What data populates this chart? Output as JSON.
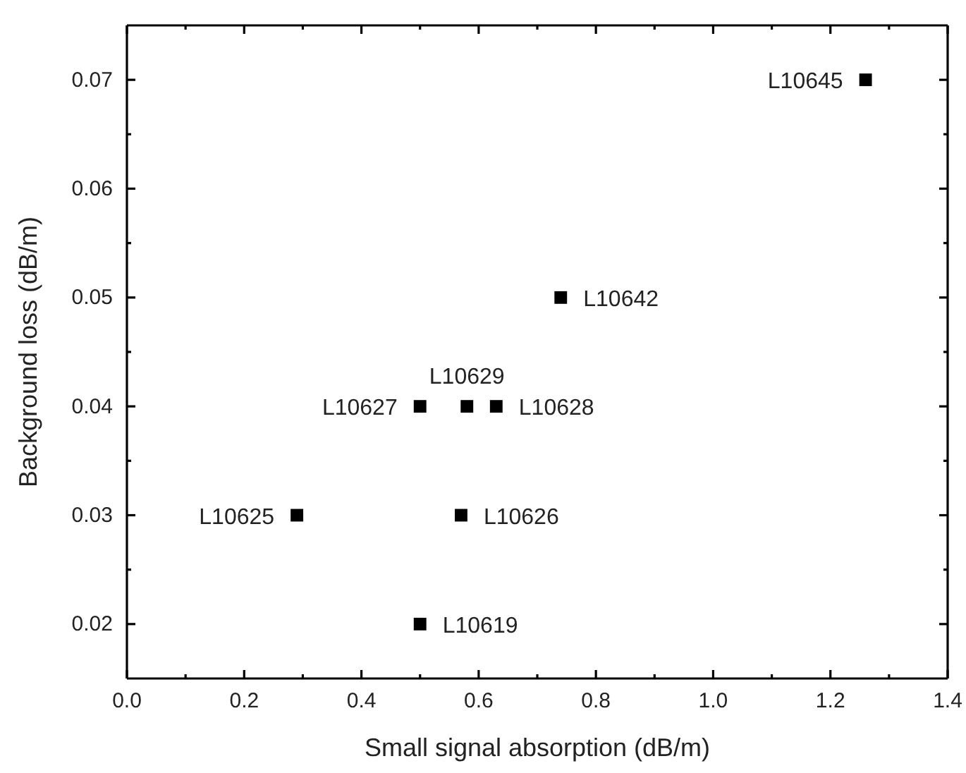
{
  "chart_data": {
    "type": "scatter",
    "xlabel": "Small signal absorption (dB/m)",
    "ylabel": "Background loss (dB/m)",
    "x": [
      1.26,
      0.74,
      0.5,
      0.58,
      0.63,
      0.29,
      0.57,
      0.5
    ],
    "values": [
      0.07,
      0.05,
      0.04,
      0.04,
      0.04,
      0.03,
      0.03,
      0.02
    ],
    "color": "#000000",
    "marker": "square",
    "grid": false,
    "xlim": [
      0,
      1.4
    ],
    "ylim": [
      0.015,
      0.075
    ],
    "xticks": [
      {
        "value": 0,
        "label": "0.0"
      },
      {
        "value": 0.1,
        "label": null
      },
      {
        "value": 0.2,
        "label": "0.2"
      },
      {
        "value": 0.3,
        "label": null
      },
      {
        "value": 0.4,
        "label": "0.4"
      },
      {
        "value": 0.5,
        "label": null
      },
      {
        "value": 0.6,
        "label": "0.6"
      },
      {
        "value": 0.7,
        "label": null
      },
      {
        "value": 0.8,
        "label": "0.8"
      },
      {
        "value": 0.9,
        "label": null
      },
      {
        "value": 1,
        "label": "1.0"
      },
      {
        "value": 1.1,
        "label": null
      },
      {
        "value": 1.2,
        "label": "1.2"
      },
      {
        "value": 1.3,
        "label": null
      },
      {
        "value": 1.4,
        "label": "1.4"
      }
    ],
    "yticks": [
      {
        "value": 0.02,
        "label": "0.02"
      },
      {
        "value": 0.025,
        "label": null
      },
      {
        "value": 0.03,
        "label": "0.03"
      },
      {
        "value": 0.035,
        "label": null
      },
      {
        "value": 0.04,
        "label": "0.04"
      },
      {
        "value": 0.045,
        "label": null
      },
      {
        "value": 0.05,
        "label": "0.05"
      },
      {
        "value": 0.055,
        "label": null
      },
      {
        "value": 0.06,
        "label": "0.06"
      },
      {
        "value": 0.065,
        "label": null
      },
      {
        "value": 0.07,
        "label": "0.07"
      }
    ],
    "annotations": [
      {
        "text": "L10645",
        "x": 1.26,
        "y": 0.07
      },
      {
        "text": "L10642",
        "x": 0.74,
        "y": 0.05
      },
      {
        "text": "L10627",
        "x": 0.5,
        "y": 0.04
      },
      {
        "text": "L10629",
        "x": 0.58,
        "y": 0.04
      },
      {
        "text": "L10628",
        "x": 0.63,
        "y": 0.04
      },
      {
        "text": "L10625",
        "x": 0.29,
        "y": 0.03
      },
      {
        "text": "L10626",
        "x": 0.57,
        "y": 0.03
      },
      {
        "text": "L10619",
        "x": 0.5,
        "y": 0.02
      }
    ]
  }
}
